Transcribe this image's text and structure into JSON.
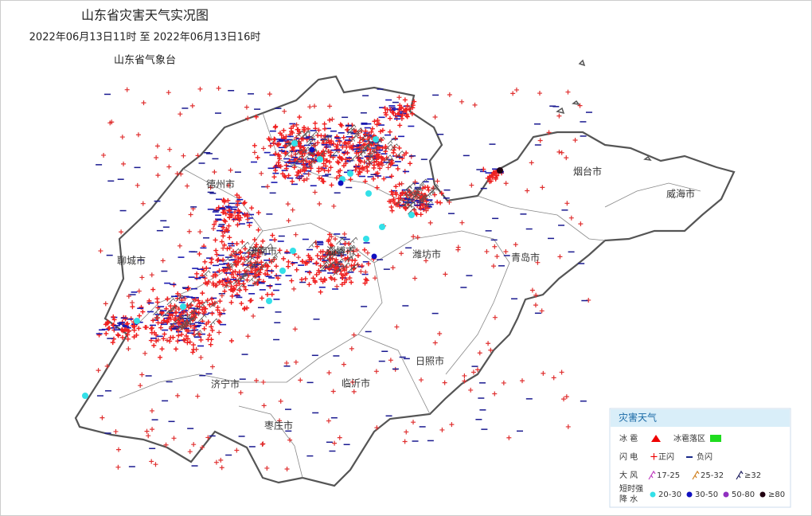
{
  "header": {
    "title": "山东省灾害天气实况图",
    "time_range": "2022年06月13日11时  至  2022年06月13日16时",
    "agency": "山东省气象台"
  },
  "cities": [
    {
      "label": "德州市"
    },
    {
      "label": "聊城市"
    },
    {
      "label": "济南市"
    },
    {
      "label": "淄博市"
    },
    {
      "label": "潍坊市"
    },
    {
      "label": "青岛市"
    },
    {
      "label": "烟台市"
    },
    {
      "label": "威海市"
    },
    {
      "label": "日照市"
    },
    {
      "label": "临沂市"
    },
    {
      "label": "济宁市"
    },
    {
      "label": "枣庄市"
    }
  ],
  "legend": {
    "title": "灾害天气",
    "hail": {
      "label": "冰 雹",
      "area": "冰雹落区"
    },
    "lightning": {
      "label": "闪 电",
      "positive": "正闪",
      "negative": "负闪"
    },
    "wind": {
      "label": "大 风",
      "levels": [
        "17-25",
        "25-32",
        "≥32"
      ]
    },
    "rain": {
      "label_top": "短时强",
      "label_bottom": "降 水",
      "levels": [
        "20-30",
        "30-50",
        "50-80",
        "≥80"
      ]
    }
  }
}
